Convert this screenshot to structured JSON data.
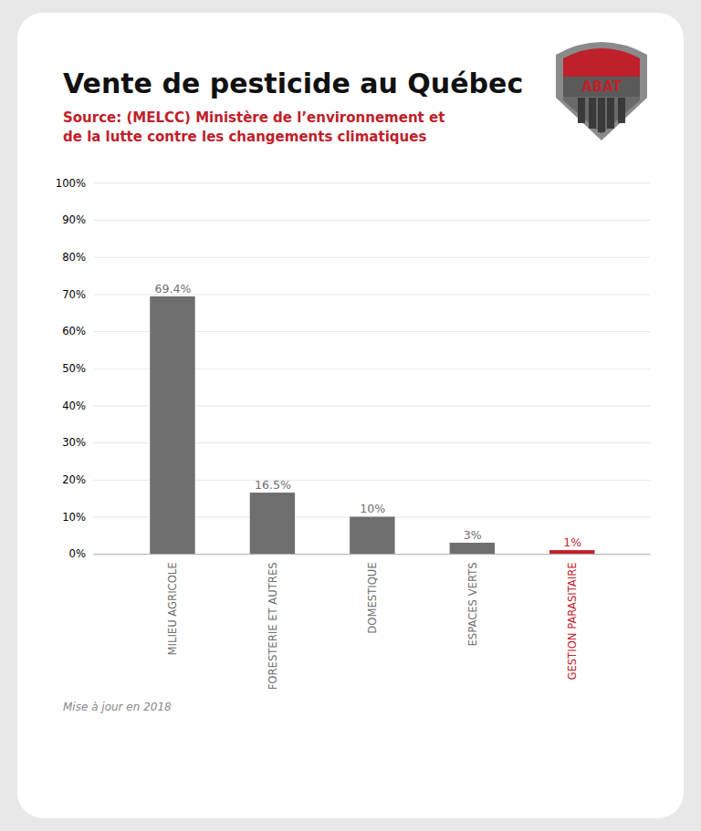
{
  "chart_data": {
    "type": "bar",
    "title": "Vente de pesticide au Québec",
    "subtitle": "Source: (MELCC) Ministère de l’environnement et\nde la lutte contre les changements climatiques",
    "annotations": [
      "ABAT",
      "Mise à jour en 2018"
    ],
    "categories": [
      "MILIEU AGRICOLE",
      "FORESTERIE ET AUTRES",
      "DOMESTIQUE",
      "ESPACES VERTS",
      "GESTION PARASITAIRE"
    ],
    "values": [
      69.4,
      16.5,
      10.0,
      3.0,
      1.0
    ],
    "value_labels": [
      "69.4%",
      "16.5%",
      "10%",
      "3%",
      "1%"
    ],
    "colors": [
      "#6e6e6e",
      "#6e6e6e",
      "#6e6e6e",
      "#6e6e6e",
      "#c0202a"
    ],
    "data_labels": true,
    "ylim": [
      0,
      100
    ],
    "yticks": [
      {
        "value": 0,
        "label": "0%"
      },
      {
        "value": 10,
        "label": "10%"
      },
      {
        "value": 20,
        "label": "20%"
      },
      {
        "value": 30,
        "label": "30%"
      },
      {
        "value": 40,
        "label": "40%"
      },
      {
        "value": 50,
        "label": "50%"
      },
      {
        "value": 60,
        "label": "60%"
      },
      {
        "value": 70,
        "label": "70%"
      },
      {
        "value": 80,
        "label": "80%"
      },
      {
        "value": 90,
        "label": "90%"
      },
      {
        "value": 100,
        "label": "100%"
      }
    ],
    "grid": true
  }
}
